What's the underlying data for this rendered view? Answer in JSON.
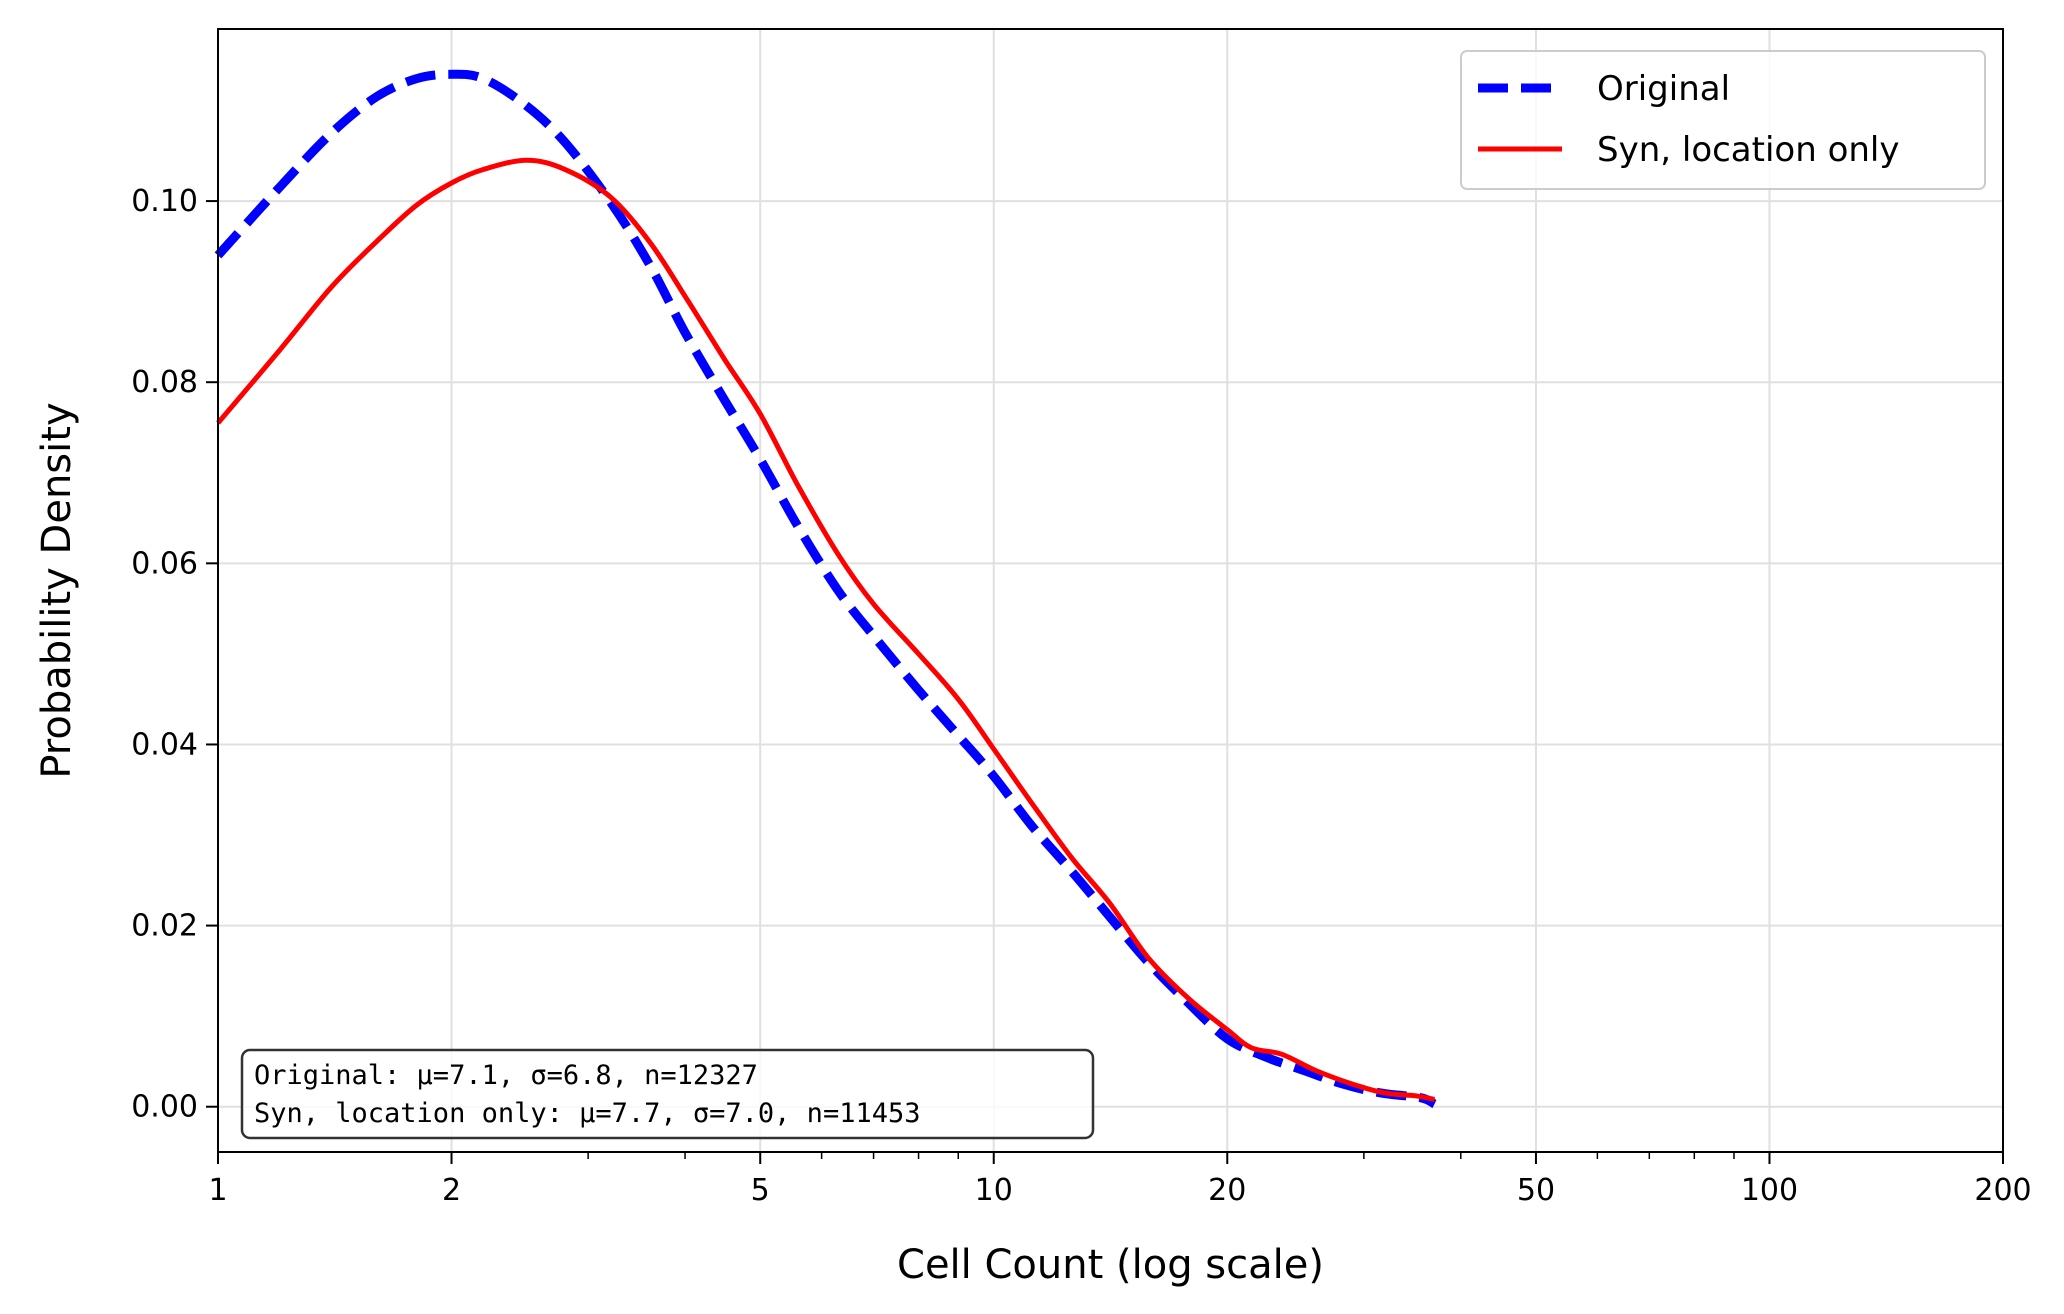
{
  "chart_data": {
    "type": "line",
    "xlabel": "Cell Count (log scale)",
    "ylabel": "Probability Density",
    "xscale": "log",
    "xlim": [
      1,
      200
    ],
    "ylim": [
      -0.005,
      0.119
    ],
    "grid": true,
    "legend_position": "top-right",
    "xticks": [
      {
        "value": 1,
        "label": "1"
      },
      {
        "value": 2,
        "label": "2"
      },
      {
        "value": 5,
        "label": "5"
      },
      {
        "value": 10,
        "label": "10"
      },
      {
        "value": 20,
        "label": "20"
      },
      {
        "value": 50,
        "label": "50"
      },
      {
        "value": 100,
        "label": "100"
      },
      {
        "value": 200,
        "label": "200"
      }
    ],
    "yticks": [
      {
        "value": 0.0,
        "label": "0.00"
      },
      {
        "value": 0.02,
        "label": "0.02"
      },
      {
        "value": 0.04,
        "label": "0.04"
      },
      {
        "value": 0.06,
        "label": "0.06"
      },
      {
        "value": 0.08,
        "label": "0.08"
      },
      {
        "value": 0.1,
        "label": "0.10"
      }
    ],
    "series": [
      {
        "name": "Original",
        "color": "#0000ff",
        "style": "dashed",
        "x": [
          1.0,
          1.2,
          1.4,
          1.6,
          1.8,
          2.0,
          2.2,
          2.5,
          2.8,
          3.2,
          3.6,
          4.0,
          4.5,
          5.0,
          5.6,
          6.3,
          7.0,
          8.0,
          9.0,
          10.0,
          11.2,
          12.6,
          14.1,
          15.8,
          17.8,
          20.0,
          22.4,
          25.1,
          28.2,
          31.6,
          35.5,
          37.0
        ],
        "y": [
          0.094,
          0.1015,
          0.1075,
          0.1115,
          0.1135,
          0.114,
          0.1135,
          0.1105,
          0.1065,
          0.1,
          0.093,
          0.0855,
          0.078,
          0.0715,
          0.064,
          0.057,
          0.052,
          0.046,
          0.041,
          0.0365,
          0.031,
          0.026,
          0.021,
          0.016,
          0.0115,
          0.0075,
          0.0055,
          0.004,
          0.0025,
          0.0015,
          0.001,
          0.0003
        ]
      },
      {
        "name": "Syn, location only",
        "color": "#ff0000",
        "style": "solid",
        "x": [
          1.0,
          1.2,
          1.4,
          1.6,
          1.8,
          2.0,
          2.2,
          2.5,
          2.8,
          3.2,
          3.6,
          4.0,
          4.5,
          5.0,
          5.6,
          6.3,
          7.0,
          8.0,
          9.0,
          10.0,
          11.2,
          12.6,
          14.1,
          15.8,
          17.8,
          20.0,
          21.5,
          23.5,
          26.0,
          29.0,
          32.0,
          35.0,
          37.0
        ],
        "y": [
          0.0755,
          0.0835,
          0.0905,
          0.0955,
          0.0995,
          0.102,
          0.1035,
          0.1045,
          0.1035,
          0.1005,
          0.0955,
          0.0895,
          0.0825,
          0.0765,
          0.0685,
          0.061,
          0.0555,
          0.05,
          0.045,
          0.0395,
          0.0335,
          0.0275,
          0.0225,
          0.0165,
          0.012,
          0.0085,
          0.0065,
          0.0058,
          0.004,
          0.0025,
          0.0015,
          0.0012,
          0.0008
        ]
      }
    ],
    "annotation": {
      "lines": [
        "Original: μ=7.1, σ=6.8, n=12327",
        "Syn, location only: μ=7.7, σ=7.0, n=11453"
      ]
    }
  }
}
